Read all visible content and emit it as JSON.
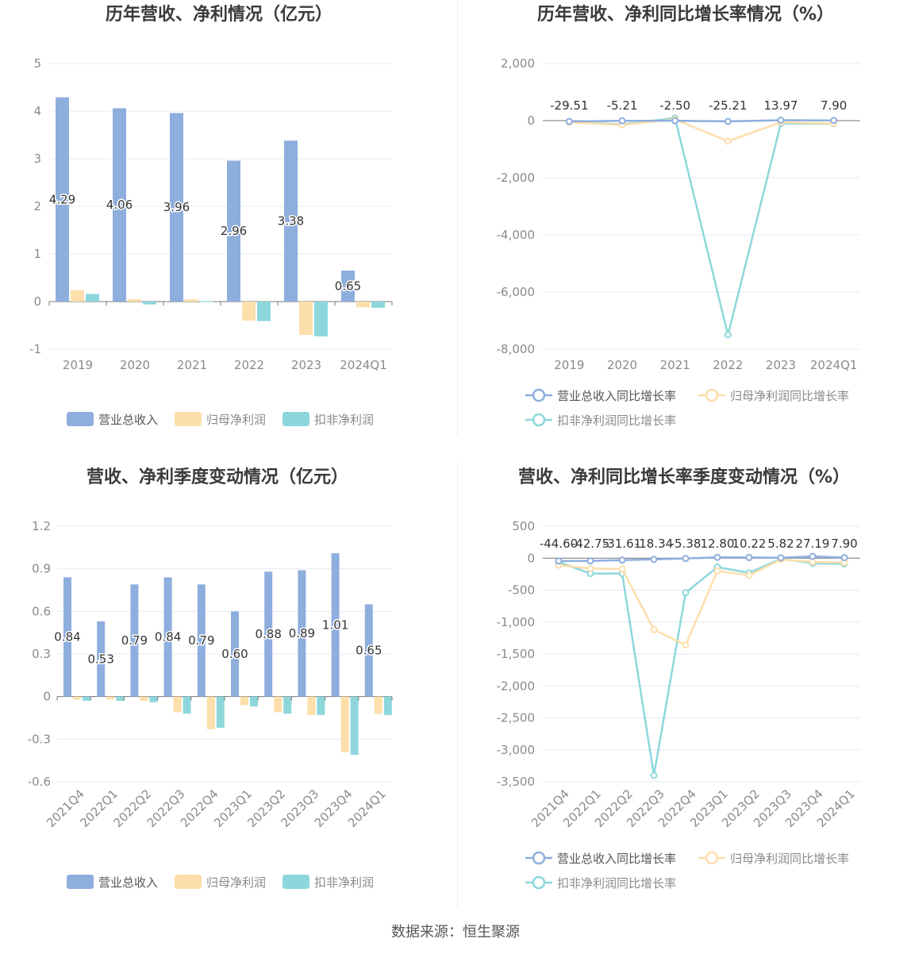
{
  "charts": {
    "annual_bar": {
      "title": "历年营收、净利情况（亿元）",
      "chart_data": {
        "type": "bar",
        "categories": [
          "2019",
          "2020",
          "2021",
          "2022",
          "2023",
          "2024Q1"
        ],
        "ylim": [
          -1,
          5
        ],
        "yticks": [
          5,
          4,
          3,
          2,
          1,
          0,
          -1
        ],
        "series": [
          {
            "name": "营业总收入",
            "color": "#8eaedd",
            "values": [
              4.29,
              4.06,
              3.96,
              2.96,
              3.38,
              0.65
            ],
            "labels": [
              "4.29",
              "4.06",
              "3.96",
              "2.96",
              "3.38",
              "0.65"
            ]
          },
          {
            "name": "归母净利润",
            "color": "#fddfab",
            "values": [
              0.24,
              0.05,
              0.05,
              -0.4,
              -0.7,
              -0.12
            ]
          },
          {
            "name": "扣非净利润",
            "color": "#8dd7dc",
            "values": [
              0.16,
              -0.06,
              0.01,
              -0.41,
              -0.73,
              -0.13
            ]
          }
        ]
      }
    },
    "annual_line": {
      "title": "历年营收、净利同比增长率情况（%）",
      "chart_data": {
        "type": "line",
        "categories": [
          "2019",
          "2020",
          "2021",
          "2022",
          "2023",
          "2024Q1"
        ],
        "ylim": [
          -8000,
          2000
        ],
        "yticks": [
          "2,000",
          "0",
          "-2,000",
          "-4,000",
          "-6,000",
          "-8,000"
        ],
        "ytick_values": [
          2000,
          0,
          -2000,
          -4000,
          -6000,
          -8000
        ],
        "series": [
          {
            "name": "营业总收入同比增长率",
            "color": "#8eaedd",
            "values": [
              -29.51,
              -5.21,
              -2.5,
              -25.21,
              13.97,
              7.9
            ],
            "labels": [
              "-29.51",
              "-5.21",
              "-2.50",
              "-25.21",
              "13.97",
              "7.90"
            ]
          },
          {
            "name": "归母净利润同比增长率",
            "color": "#fddfab",
            "values": [
              -60,
              -150,
              40,
              -720,
              -60,
              -100
            ]
          },
          {
            "name": "扣非净利润同比增长率",
            "color": "#8dd7dc",
            "values": [
              -50,
              -130,
              90,
              -7500,
              -100,
              -110
            ]
          }
        ]
      }
    },
    "quarter_bar": {
      "title": "营收、净利季度变动情况（亿元）",
      "chart_data": {
        "type": "bar",
        "categories": [
          "2021Q4",
          "2022Q1",
          "2022Q2",
          "2022Q3",
          "2022Q4",
          "2023Q1",
          "2023Q2",
          "2023Q3",
          "2023Q4",
          "2024Q1"
        ],
        "ylim": [
          -0.6,
          1.2
        ],
        "yticks": [
          "1.2",
          "0.9",
          "0.6",
          "0.3",
          "0",
          "-0.3",
          "-0.6"
        ],
        "ytick_values": [
          1.2,
          0.9,
          0.6,
          0.3,
          0,
          -0.3,
          -0.6
        ],
        "series": [
          {
            "name": "营业总收入",
            "color": "#8eaedd",
            "values": [
              0.84,
              0.53,
              0.79,
              0.84,
              0.79,
              0.6,
              0.88,
              0.89,
              1.01,
              0.65
            ],
            "labels": [
              "0.84",
              "0.53",
              "0.79",
              "0.84",
              "0.79",
              "0.60",
              "0.88",
              "0.89",
              "1.01",
              "0.65"
            ]
          },
          {
            "name": "归母净利润",
            "color": "#fddfab",
            "values": [
              -0.02,
              -0.02,
              -0.03,
              -0.11,
              -0.23,
              -0.06,
              -0.11,
              -0.13,
              -0.39,
              -0.12
            ]
          },
          {
            "name": "扣非净利润",
            "color": "#8dd7dc",
            "values": [
              -0.03,
              -0.03,
              -0.04,
              -0.12,
              -0.22,
              -0.07,
              -0.12,
              -0.13,
              -0.41,
              -0.13
            ]
          }
        ]
      }
    },
    "quarter_line": {
      "title": "营收、净利同比增长率季度变动情况（%）",
      "chart_data": {
        "type": "line",
        "categories": [
          "2021Q4",
          "2022Q1",
          "2022Q2",
          "2022Q3",
          "2022Q4",
          "2023Q1",
          "2023Q2",
          "2023Q3",
          "2023Q4",
          "2024Q1"
        ],
        "ylim": [
          -3500,
          500
        ],
        "yticks": [
          "500",
          "0",
          "-500",
          "-1,000",
          "-1,500",
          "-2,000",
          "-2,500",
          "-3,000",
          "-3,500"
        ],
        "ytick_values": [
          500,
          0,
          -500,
          -1000,
          -1500,
          -2000,
          -2500,
          -3000,
          -3500
        ],
        "series": [
          {
            "name": "营业总收入同比增长率",
            "color": "#8eaedd",
            "values": [
              -44.6,
              -42.75,
              -31.61,
              -18.34,
              -5.38,
              12.8,
              10.22,
              5.82,
              27.19,
              7.9
            ],
            "labels": [
              "-44.60",
              "-42.75",
              "-31.61",
              "-18.34",
              "-5.38",
              "12.80",
              "10.22",
              "5.82",
              "27.19",
              "7.90"
            ]
          },
          {
            "name": "归母净利润同比增长率",
            "color": "#fddfab",
            "values": [
              -110,
              -160,
              -170,
              -1120,
              -1360,
              -200,
              -270,
              -20,
              -60,
              -70
            ]
          },
          {
            "name": "扣非净利润同比增长率",
            "color": "#8dd7dc",
            "values": [
              -60,
              -240,
              -240,
              -3400,
              -540,
              -140,
              -230,
              -10,
              -80,
              -90
            ]
          }
        ]
      }
    }
  },
  "footer": "数据来源：恒生聚源"
}
